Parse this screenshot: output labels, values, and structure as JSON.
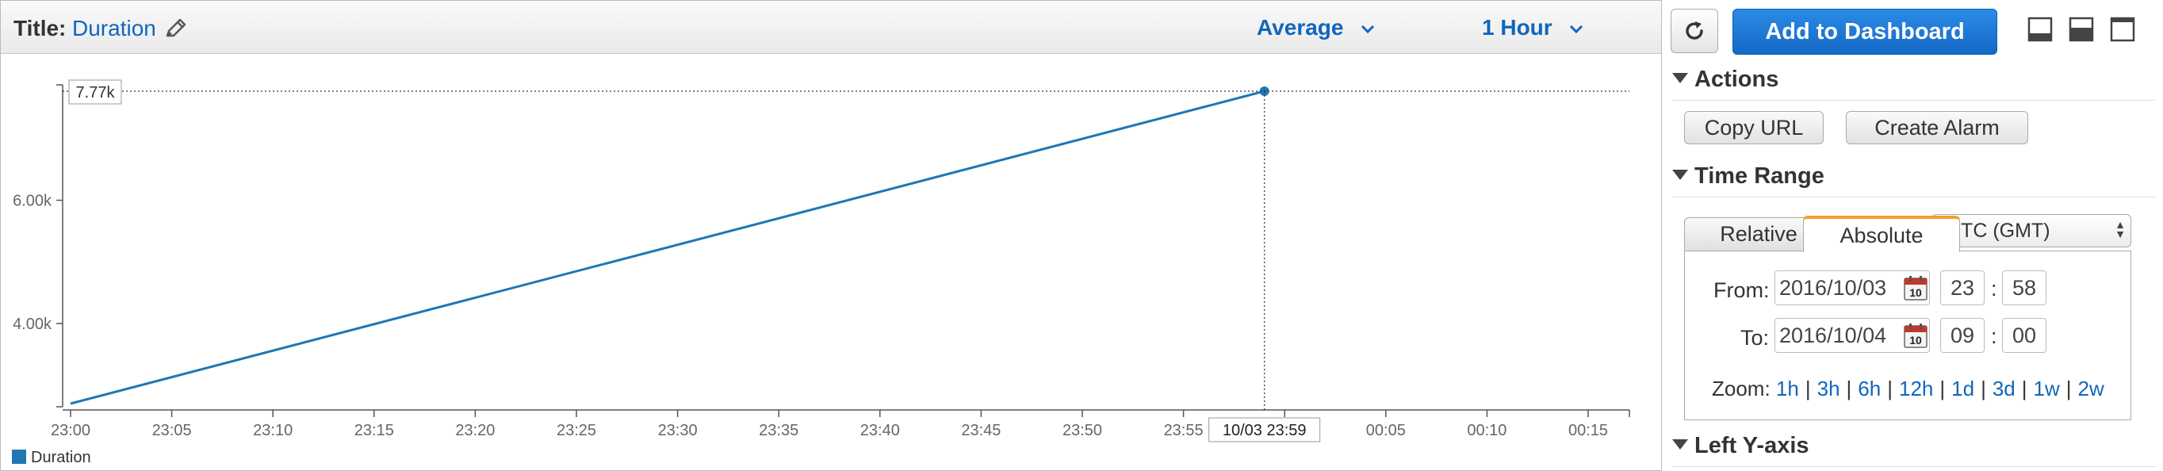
{
  "graph": {
    "title_label": "Title:",
    "title_value": "Duration",
    "statistic": "Average",
    "period": "1 Hour",
    "hover_value_label": "7.77k",
    "hover_time_label": "10/03 23:59"
  },
  "chart_data": {
    "type": "line",
    "series": [
      {
        "name": "Duration",
        "color": "#1f77b4",
        "x": [
          "10/03 23:00",
          "10/03 23:59"
        ],
        "values": [
          2700,
          7770
        ]
      }
    ],
    "y_ticks": [
      "4.00k",
      "6.00k"
    ],
    "y_tick_values": [
      4000,
      6000
    ],
    "x_ticks": [
      "23:00",
      "23:05",
      "23:10",
      "23:15",
      "23:20",
      "23:25",
      "23:30",
      "23:35",
      "23:40",
      "23:45",
      "23:50",
      "23:55",
      "00:00",
      "00:05",
      "00:10",
      "00:15"
    ],
    "legend": {
      "position": "bottom-left",
      "entries": [
        "Duration"
      ]
    },
    "grid": false
  },
  "sidebar": {
    "add_to_dashboard": "Add to Dashboard",
    "actions": {
      "header": "Actions",
      "copy_url": "Copy URL",
      "create_alarm": "Create Alarm"
    },
    "time_range": {
      "header": "Time Range",
      "tab_relative": "Relative",
      "tab_absolute": "Absolute",
      "timezone": "UTC (GMT)",
      "from_label": "From:",
      "from_date": "2016/10/03",
      "from_hour": "23",
      "from_minute": "58",
      "to_label": "To:",
      "to_date": "2016/10/04",
      "to_hour": "09",
      "to_minute": "00",
      "calendar_day": "10",
      "zoom_label": "Zoom:",
      "zoom_options": [
        "1h",
        "3h",
        "6h",
        "12h",
        "1d",
        "3d",
        "1w",
        "2w"
      ]
    },
    "left_y_axis": {
      "header": "Left Y-axis"
    }
  },
  "colors": {
    "link": "#1166bb",
    "primary_button": "#1a73d0",
    "active_tab_accent": "#f0a030",
    "series": "#1f77b4"
  }
}
